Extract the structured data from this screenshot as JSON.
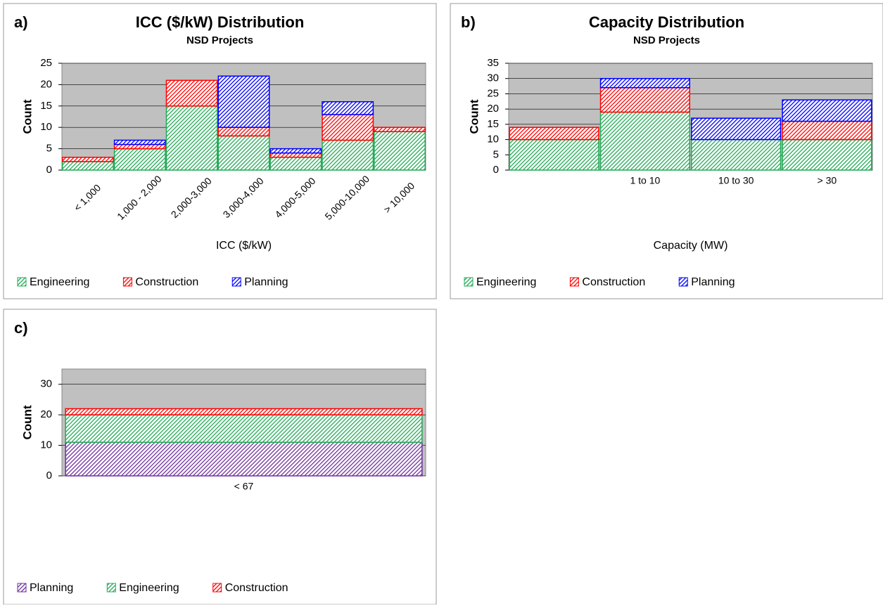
{
  "chart_data": [
    {
      "type": "bar",
      "panel_label": "a)",
      "title": "ICC ($/kW) Distribution",
      "subtitle": "NSD Projects",
      "x_label": "ICC ($/kW)",
      "y_label": "Count",
      "categories": [
        "< 1,000",
        "1,000 - 2,000",
        "2,000-3,000",
        "3,000-4,000",
        "4,000-5,000",
        "5,000-10,000",
        "> 10,000"
      ],
      "series": [
        {
          "name": "Engineering",
          "color": "#22aa55",
          "values": [
            2,
            5,
            15,
            8,
            3,
            7,
            9
          ]
        },
        {
          "name": "Construction",
          "color": "#ff0000",
          "values": [
            1,
            1,
            6,
            2,
            1,
            6,
            1
          ]
        },
        {
          "name": "Planning",
          "color": "#0000ff",
          "values": [
            0,
            1,
            0,
            12,
            1,
            3,
            0
          ]
        }
      ],
      "ylim": [
        0,
        25
      ],
      "yticks": [
        0,
        5,
        10,
        15,
        20,
        25
      ],
      "grid": true
    },
    {
      "type": "bar",
      "panel_label": "b)",
      "title": "Capacity Distribution",
      "subtitle": "NSD Projects",
      "x_label": "Capacity (MW)",
      "y_label": "Count",
      "categories": [
        null,
        "1 to 10",
        "10 to 30",
        "> 30"
      ],
      "series": [
        {
          "name": "Engineering",
          "color": "#22aa55",
          "values": [
            10,
            19,
            10,
            10
          ]
        },
        {
          "name": "Construction",
          "color": "#ff0000",
          "values": [
            4,
            8,
            0,
            6
          ]
        },
        {
          "name": "Planning",
          "color": "#0000ff",
          "values": [
            0,
            3,
            7,
            7
          ]
        }
      ],
      "ylim": [
        0,
        35
      ],
      "yticks": [
        0,
        5,
        10,
        15,
        20,
        25,
        30,
        35
      ],
      "grid": true
    },
    {
      "type": "bar",
      "panel_label": "c)",
      "y_label": "Count",
      "categories": [
        "< 67"
      ],
      "series": [
        {
          "name": "Planning",
          "color": "#7030a0",
          "values": [
            11
          ]
        },
        {
          "name": "Engineering",
          "color": "#22aa55",
          "values": [
            9
          ]
        },
        {
          "name": "Construction",
          "color": "#ff0000",
          "values": [
            2
          ]
        }
      ],
      "ylim": [
        0,
        35
      ],
      "yticks": [
        0,
        10,
        20,
        30
      ],
      "grid": true
    }
  ]
}
